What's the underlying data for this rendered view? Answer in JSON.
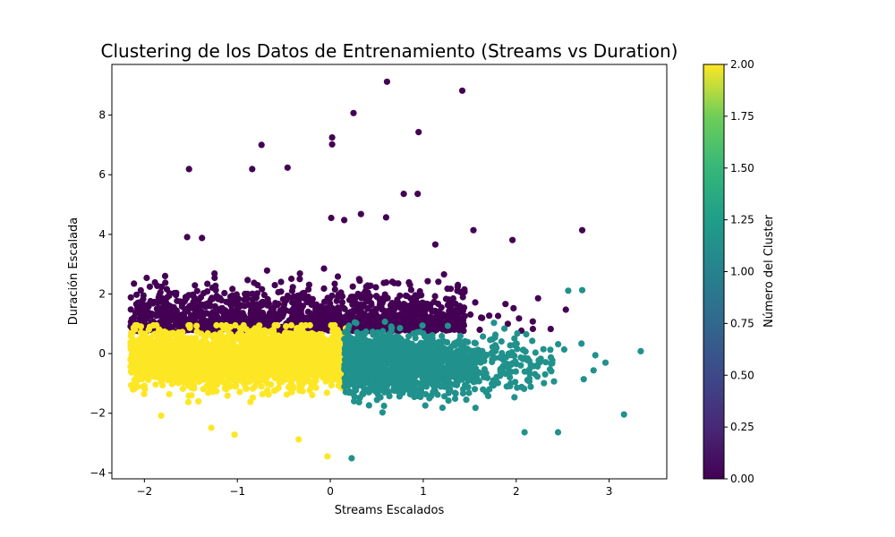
{
  "chart_data": {
    "type": "scatter",
    "title": "Clustering de los Datos de Entrenamiento (Streams vs Duration)",
    "xlabel": "Streams Escalados",
    "ylabel": "Duración Escalada",
    "xlim": [
      -2.35,
      3.62
    ],
    "ylim": [
      -4.2,
      9.7
    ],
    "xticks": [
      -2,
      -1,
      0,
      1,
      2,
      3
    ],
    "yticks": [
      -4,
      -2,
      0,
      2,
      4,
      6,
      8
    ],
    "grid": false,
    "colorbar": {
      "label": "Número del Cluster",
      "colormap": "viridis",
      "range": [
        0,
        2
      ],
      "ticks": [
        0.0,
        0.25,
        0.5,
        0.75,
        1.0,
        1.25,
        1.5,
        1.75,
        2.0
      ],
      "tick_labels": [
        "0.00",
        "0.25",
        "0.50",
        "0.75",
        "1.00",
        "1.25",
        "1.50",
        "1.75",
        "2.00"
      ]
    },
    "clusters": [
      {
        "cluster": 0,
        "color": "#440154",
        "x_range": [
          -2.15,
          2.75
        ],
        "y_range": [
          0.6,
          9.1
        ]
      },
      {
        "cluster": 1,
        "color": "#21918c",
        "x_range": [
          0.15,
          3.35
        ],
        "y_range": [
          -3.5,
          1.8
        ]
      },
      {
        "cluster": 2,
        "color": "#fde725",
        "x_range": [
          -2.15,
          0.18
        ],
        "y_range": [
          -3.45,
          1.0
        ]
      }
    ],
    "outliers": [
      {
        "cluster": 0,
        "x": 0.61,
        "y": 9.12
      },
      {
        "cluster": 0,
        "x": 1.42,
        "y": 8.82
      },
      {
        "cluster": 0,
        "x": 0.25,
        "y": 8.07
      },
      {
        "cluster": 0,
        "x": 0.95,
        "y": 7.43
      },
      {
        "cluster": 0,
        "x": 0.02,
        "y": 7.25
      },
      {
        "cluster": 0,
        "x": 0.02,
        "y": 7.02
      },
      {
        "cluster": 0,
        "x": -0.74,
        "y": 7.0
      },
      {
        "cluster": 0,
        "x": -1.52,
        "y": 6.19
      },
      {
        "cluster": 0,
        "x": -0.84,
        "y": 6.19
      },
      {
        "cluster": 0,
        "x": -0.46,
        "y": 6.24
      },
      {
        "cluster": 0,
        "x": 0.79,
        "y": 5.36
      },
      {
        "cluster": 0,
        "x": 0.94,
        "y": 5.36
      },
      {
        "cluster": 0,
        "x": 0.33,
        "y": 4.68
      },
      {
        "cluster": 0,
        "x": 0.6,
        "y": 4.57
      },
      {
        "cluster": 0,
        "x": 0.01,
        "y": 4.55
      },
      {
        "cluster": 0,
        "x": 0.15,
        "y": 4.48
      },
      {
        "cluster": 0,
        "x": 1.54,
        "y": 4.14
      },
      {
        "cluster": 0,
        "x": 2.71,
        "y": 4.14
      },
      {
        "cluster": 0,
        "x": 1.96,
        "y": 3.81
      },
      {
        "cluster": 0,
        "x": -1.54,
        "y": 3.91
      },
      {
        "cluster": 0,
        "x": -1.38,
        "y": 3.88
      },
      {
        "cluster": 0,
        "x": 1.13,
        "y": 3.66
      },
      {
        "cluster": 1,
        "x": 2.71,
        "y": 2.13
      },
      {
        "cluster": 1,
        "x": 2.56,
        "y": 2.11
      },
      {
        "cluster": 1,
        "x": 3.34,
        "y": 0.08
      },
      {
        "cluster": 1,
        "x": 3.16,
        "y": -2.04
      },
      {
        "cluster": 1,
        "x": 2.45,
        "y": -2.64
      },
      {
        "cluster": 1,
        "x": 2.09,
        "y": -2.64
      },
      {
        "cluster": 1,
        "x": 0.23,
        "y": -3.51
      },
      {
        "cluster": 2,
        "x": -0.03,
        "y": -3.45
      },
      {
        "cluster": 2,
        "x": -0.34,
        "y": -2.88
      },
      {
        "cluster": 2,
        "x": -1.03,
        "y": -2.72
      },
      {
        "cluster": 2,
        "x": -1.28,
        "y": -2.49
      },
      {
        "cluster": 2,
        "x": -1.82,
        "y": -2.08
      }
    ]
  }
}
